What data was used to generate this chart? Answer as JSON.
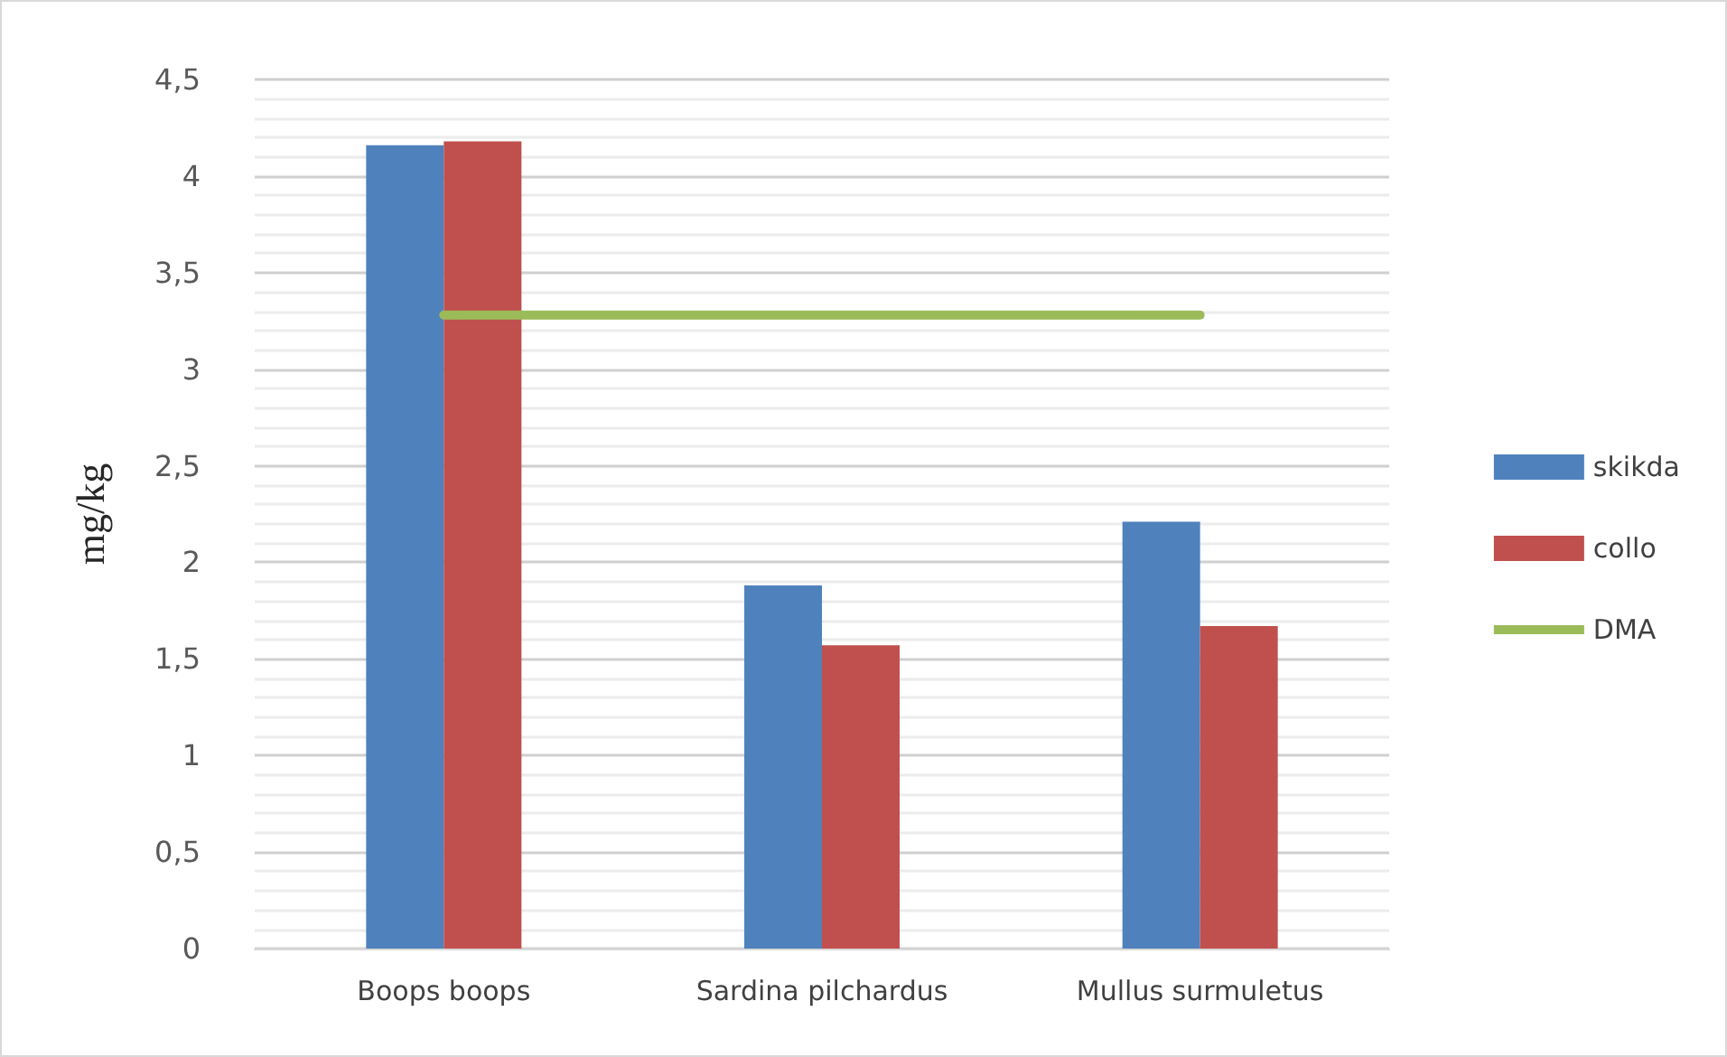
{
  "chart_data": {
    "type": "bar",
    "ylabel": "mg/kg",
    "categories": [
      "Boops boops",
      "Sardina pilchardus",
      "Mullus surmuletus"
    ],
    "series": [
      {
        "name": "skikda",
        "color": "#4f81bd",
        "values": [
          4.16,
          1.88,
          2.21
        ]
      },
      {
        "name": "collo",
        "color": "#c0504d",
        "values": [
          4.18,
          1.57,
          1.67
        ]
      },
      {
        "name": "DMA",
        "type": "line",
        "color": "#9bbb59",
        "values": [
          3.28,
          3.28,
          3.28
        ],
        "marker": "none"
      }
    ],
    "ylim": [
      0,
      4.5
    ],
    "yticks": [
      0,
      {
        "value": 0.5,
        "label": "0,5"
      },
      1,
      {
        "value": 1.5,
        "label": "1,5"
      },
      2,
      {
        "value": 2.5,
        "label": "2,5"
      },
      3,
      {
        "value": 3.5,
        "label": "3,5"
      },
      4,
      {
        "value": 4.5,
        "label": "4,5"
      }
    ],
    "grid": "y",
    "legend": "right"
  }
}
